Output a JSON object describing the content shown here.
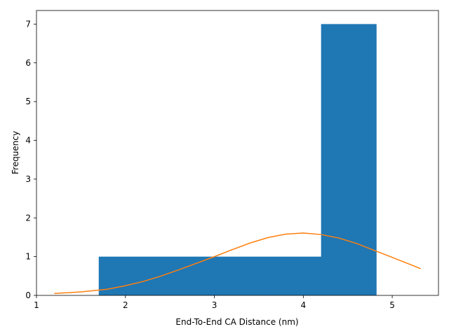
{
  "chart_data": {
    "type": "bar",
    "title": "",
    "xlabel": "End-To-End CA Distance (nm)",
    "ylabel": "Frequency",
    "xlim": [
      1.0,
      5.52
    ],
    "ylim": [
      0,
      7.35
    ],
    "xticks": [
      1,
      2,
      3,
      4,
      5
    ],
    "yticks": [
      0,
      1,
      2,
      3,
      4,
      5,
      6,
      7
    ],
    "grid": false,
    "series": [
      {
        "kind": "histogram",
        "color": "#1f77b4",
        "bins": [
          {
            "x0": 1.7,
            "x1": 2.33,
            "value": 1
          },
          {
            "x0": 2.33,
            "x1": 2.95,
            "value": 1
          },
          {
            "x0": 2.95,
            "x1": 3.58,
            "value": 1
          },
          {
            "x0": 3.58,
            "x1": 4.2,
            "value": 1
          },
          {
            "x0": 4.2,
            "x1": 4.82,
            "value": 7
          }
        ]
      },
      {
        "kind": "line",
        "color": "#ff7f0e",
        "x": [
          1.2,
          1.5,
          1.8,
          2.0,
          2.2,
          2.4,
          2.6,
          2.8,
          3.0,
          3.2,
          3.4,
          3.6,
          3.8,
          4.0,
          4.2,
          4.4,
          4.6,
          4.8,
          5.0,
          5.32
        ],
        "y": [
          0.05,
          0.09,
          0.16,
          0.25,
          0.36,
          0.5,
          0.66,
          0.83,
          1.0,
          1.18,
          1.35,
          1.49,
          1.58,
          1.61,
          1.57,
          1.48,
          1.34,
          1.16,
          0.98,
          0.69
        ]
      }
    ]
  }
}
